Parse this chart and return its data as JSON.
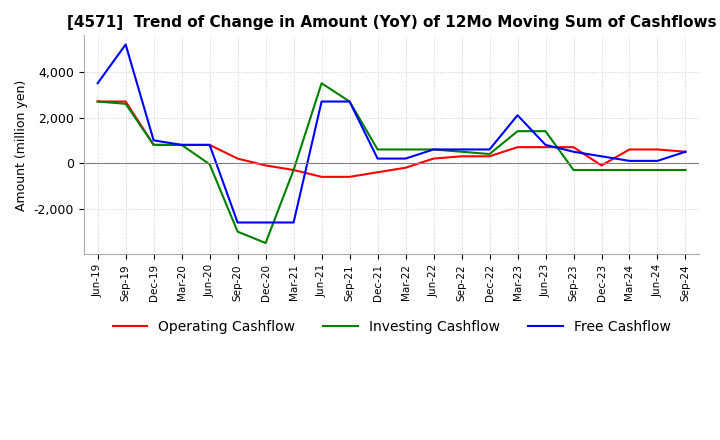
{
  "title": "[4571]  Trend of Change in Amount (YoY) of 12Mo Moving Sum of Cashflows",
  "ylabel": "Amount (million yen)",
  "x_labels": [
    "Jun-19",
    "Sep-19",
    "Dec-19",
    "Mar-20",
    "Jun-20",
    "Sep-20",
    "Dec-20",
    "Mar-21",
    "Jun-21",
    "Sep-21",
    "Dec-21",
    "Mar-22",
    "Jun-22",
    "Sep-22",
    "Dec-22",
    "Mar-23",
    "Jun-23",
    "Sep-23",
    "Dec-23",
    "Mar-24",
    "Jun-24",
    "Sep-24"
  ],
  "operating_cashflow": [
    2700,
    2700,
    800,
    800,
    800,
    200,
    -100,
    -300,
    -600,
    -600,
    -400,
    -200,
    200,
    300,
    300,
    700,
    700,
    700,
    -100,
    600,
    600,
    500
  ],
  "investing_cashflow": [
    2700,
    2600,
    800,
    800,
    -50,
    -3000,
    -3500,
    -300,
    3500,
    2700,
    600,
    600,
    600,
    500,
    400,
    1400,
    1400,
    -300,
    -300,
    -300,
    -300,
    -300
  ],
  "free_cashflow": [
    3500,
    5200,
    1000,
    800,
    800,
    -2600,
    -2600,
    -2600,
    2700,
    2700,
    200,
    200,
    600,
    600,
    600,
    2100,
    800,
    500,
    300,
    100,
    100,
    500
  ],
  "operating_color": "#ff0000",
  "investing_color": "#008000",
  "free_color": "#0000ff",
  "ylim_min": -4000,
  "ylim_max": 5600,
  "yticks": [
    -2000,
    0,
    2000,
    4000
  ],
  "background_color": "#ffffff",
  "title_fontsize": 11,
  "axis_fontsize": 9,
  "legend_fontsize": 10,
  "grid_color": "#cccccc",
  "grid_style": ":"
}
